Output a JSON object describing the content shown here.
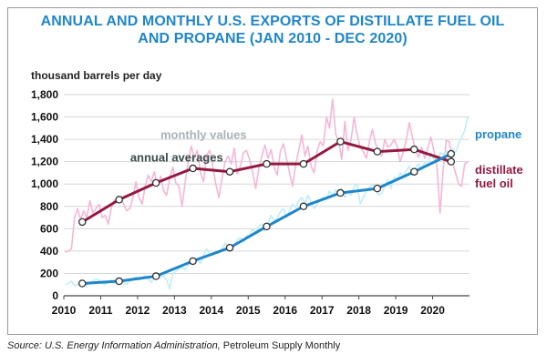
{
  "header": {
    "title_line1": "ANNUAL AND MONTHLY U.S. EXPORTS OF DISTILLATE FUEL OIL",
    "title_line2": "AND PROPANE (JAN 2010 - DEC 2020)"
  },
  "source": {
    "prefix": "Source: U.S. Energy Information Administration,",
    "rest": " Petroleum Supply Monthly"
  },
  "colors": {
    "propane": "#1f86c9",
    "propane_monthly": "#bfeef6",
    "distillate": "#94193f",
    "distillate_monthly": "#f5b6d8",
    "monthly_label": "#a6b3b6",
    "annual_label": "#3a4a4a"
  },
  "chart_data": {
    "type": "line",
    "title": "ANNUAL AND MONTHLY U.S. EXPORTS OF DISTILLATE FUEL OIL AND PROPANE (JAN 2010 - DEC 2020)",
    "ylabel": "thousand barrels per day",
    "xlabel": "",
    "ylim": [
      0,
      1800
    ],
    "xlim": [
      2010,
      2021
    ],
    "grid": "horizontal",
    "x_ticks": [
      "2010",
      "2011",
      "2012",
      "2013",
      "2014",
      "2015",
      "2016",
      "2017",
      "2018",
      "2019",
      "2020"
    ],
    "y_ticks": [
      "0",
      "200",
      "400",
      "600",
      "800",
      "1,000",
      "1,200",
      "1,400",
      "1,600",
      "1,800"
    ],
    "annotations": {
      "monthly": "monthly values",
      "annual": "annual averages",
      "propane": "propane",
      "distillate_line1": "distillate",
      "distillate_line2": "fuel oil"
    },
    "series": [
      {
        "name": "distillate fuel oil",
        "kind": "annual averages",
        "x": [
          2010.5,
          2011.5,
          2012.5,
          2013.5,
          2014.5,
          2015.5,
          2016.5,
          2017.5,
          2018.5,
          2019.5,
          2020.5
        ],
        "values": [
          660,
          860,
          1010,
          1140,
          1110,
          1180,
          1180,
          1380,
          1290,
          1310,
          1200
        ]
      },
      {
        "name": "propane",
        "kind": "annual averages",
        "x": [
          2010.5,
          2011.5,
          2012.5,
          2013.5,
          2014.5,
          2015.5,
          2016.5,
          2017.5,
          2018.5,
          2019.5,
          2020.5
        ],
        "values": [
          110,
          130,
          175,
          310,
          430,
          620,
          800,
          920,
          960,
          1110,
          1270
        ]
      },
      {
        "name": "distillate fuel oil",
        "kind": "monthly values",
        "x0": 2010.04,
        "dx": 0.0833,
        "values": [
          390,
          400,
          420,
          700,
          780,
          680,
          760,
          700,
          850,
          740,
          780,
          820,
          700,
          720,
          640,
          790,
          860,
          840,
          880,
          820,
          760,
          780,
          880,
          1020,
          880,
          820,
          980,
          1080,
          1020,
          1110,
          980,
          1070,
          940,
          900,
          1060,
          1150,
          1010,
          980,
          800,
          1010,
          1200,
          1340,
          1230,
          1300,
          1100,
          1020,
          1260,
          1300,
          1160,
          1000,
          880,
          1050,
          1200,
          1250,
          1180,
          1320,
          1090,
          1160,
          1280,
          1300,
          1220,
          1100,
          960,
          1140,
          1250,
          1350,
          1230,
          1310,
          1150,
          1080,
          1290,
          1360,
          1230,
          1100,
          980,
          1180,
          1300,
          1440,
          1250,
          1340,
          1160,
          1100,
          1300,
          1380,
          1340,
          1600,
          1500,
          1760,
          1450,
          1380,
          1220,
          1560,
          1300,
          1390,
          1600,
          1440,
          1330,
          1290,
          1230,
          1380,
          1490,
          1360,
          1300,
          1250,
          1400,
          1330,
          1350,
          1400,
          1340,
          1200,
          1280,
          1400,
          1550,
          1420,
          1300,
          1240,
          1330,
          1230,
          1320,
          1420,
          1300,
          1150,
          740,
          1120,
          1390,
          1380,
          1200,
          1100,
          1000,
          980,
          1180,
          1200
        ]
      },
      {
        "name": "propane",
        "kind": "monthly values",
        "x0": 2010.04,
        "dx": 0.0833,
        "values": [
          100,
          110,
          130,
          90,
          100,
          120,
          110,
          90,
          110,
          130,
          150,
          140,
          110,
          100,
          120,
          140,
          110,
          130,
          160,
          120,
          100,
          140,
          150,
          170,
          140,
          160,
          180,
          150,
          120,
          170,
          190,
          160,
          180,
          140,
          60,
          200,
          220,
          240,
          250,
          230,
          280,
          310,
          300,
          330,
          290,
          360,
          420,
          380,
          360,
          400,
          380,
          420,
          470,
          430,
          400,
          450,
          500,
          520,
          480,
          540,
          530,
          600,
          560,
          620,
          640,
          580,
          650,
          720,
          660,
          700,
          750,
          780,
          700,
          760,
          820,
          790,
          850,
          880,
          830,
          900,
          840,
          780,
          820,
          860,
          880,
          860,
          940,
          890,
          950,
          900,
          960,
          880,
          940,
          900,
          980,
          1000,
          820,
          880,
          940,
          970,
          1000,
          960,
          900,
          920,
          980,
          1040,
          960,
          1060,
          1040,
          1100,
          1060,
          1120,
          1160,
          1080,
          1140,
          1180,
          1130,
          1200,
          1160,
          1280,
          1220,
          1200,
          1280,
          1260,
          1300,
          1240,
          1320,
          1280,
          1360,
          1420,
          1480,
          1600
        ]
      }
    ]
  }
}
